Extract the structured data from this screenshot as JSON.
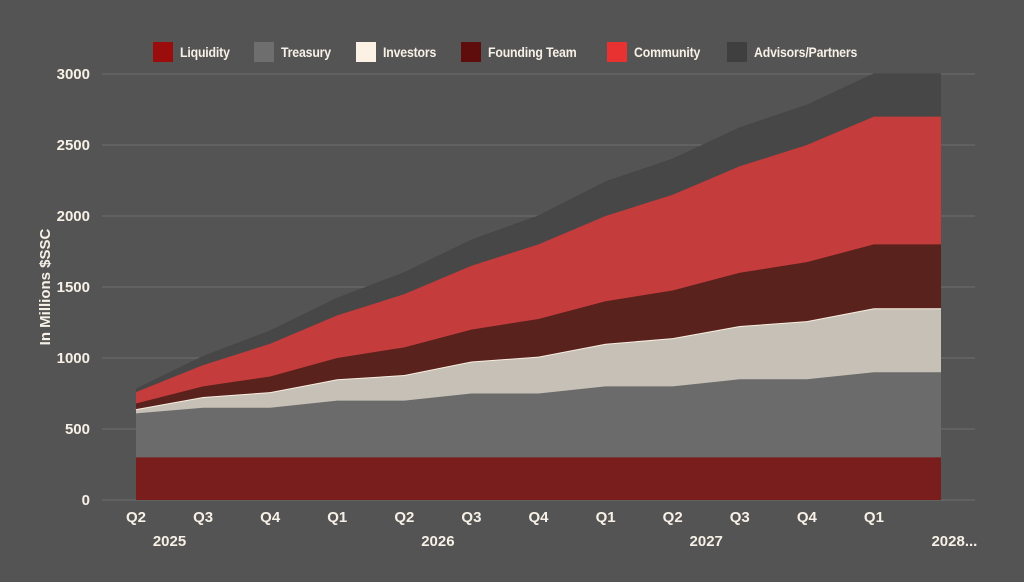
{
  "chart_data": {
    "type": "area",
    "stacked": true,
    "title": "",
    "xlabel": "",
    "ylabel": "In Millions $SSC",
    "ylim": [
      0,
      3000
    ],
    "yticks": [
      0,
      500,
      1000,
      1500,
      2000,
      2500,
      3000
    ],
    "grid": true,
    "legend_position": "top-center",
    "categories": [
      "Q2",
      "Q3",
      "Q4",
      "Q1",
      "Q2",
      "Q3",
      "Q4",
      "Q1",
      "Q2",
      "Q3",
      "Q4",
      "Q1",
      ""
    ],
    "year_labels": [
      {
        "label": "2025",
        "at_index": 0.5
      },
      {
        "label": "2026",
        "at_index": 4.5
      },
      {
        "label": "2027",
        "at_index": 8.5
      },
      {
        "label": "2028...",
        "at_index": 12.2
      }
    ],
    "series": [
      {
        "name": "Liquidity",
        "color": "#7a1d1d",
        "legend_color": "#9b0d0d",
        "values": [
          300,
          300,
          300,
          300,
          300,
          300,
          300,
          300,
          300,
          300,
          300,
          300,
          300
        ]
      },
      {
        "name": "Treasury",
        "color": "#6b6b6b",
        "legend_color": "#6e6e6e",
        "values": [
          310,
          350,
          350,
          400,
          400,
          450,
          450,
          500,
          500,
          550,
          550,
          600,
          600
        ]
      },
      {
        "name": "Investors",
        "color": "#c6c0b6",
        "legend_color": "#fbf1e4",
        "edge_color": "#f8eee2",
        "values": [
          30,
          75,
          110,
          150,
          180,
          225,
          260,
          300,
          340,
          375,
          410,
          450,
          450
        ]
      },
      {
        "name": "Founding Team",
        "color": "#5a221d",
        "legend_color": "#5e0c0c",
        "values": [
          40,
          75,
          110,
          150,
          195,
          225,
          265,
          300,
          335,
          375,
          415,
          450,
          450
        ]
      },
      {
        "name": "Community",
        "color": "#c43c3c",
        "legend_color": "#e83232",
        "values": [
          80,
          150,
          230,
          300,
          375,
          450,
          525,
          600,
          675,
          750,
          825,
          900,
          900
        ]
      },
      {
        "name": "Advisors/Partners",
        "color": "#474747",
        "legend_color": "#3f3f3f",
        "values": [
          20,
          60,
          90,
          120,
          150,
          180,
          200,
          240,
          250,
          270,
          280,
          300,
          300
        ]
      }
    ]
  }
}
